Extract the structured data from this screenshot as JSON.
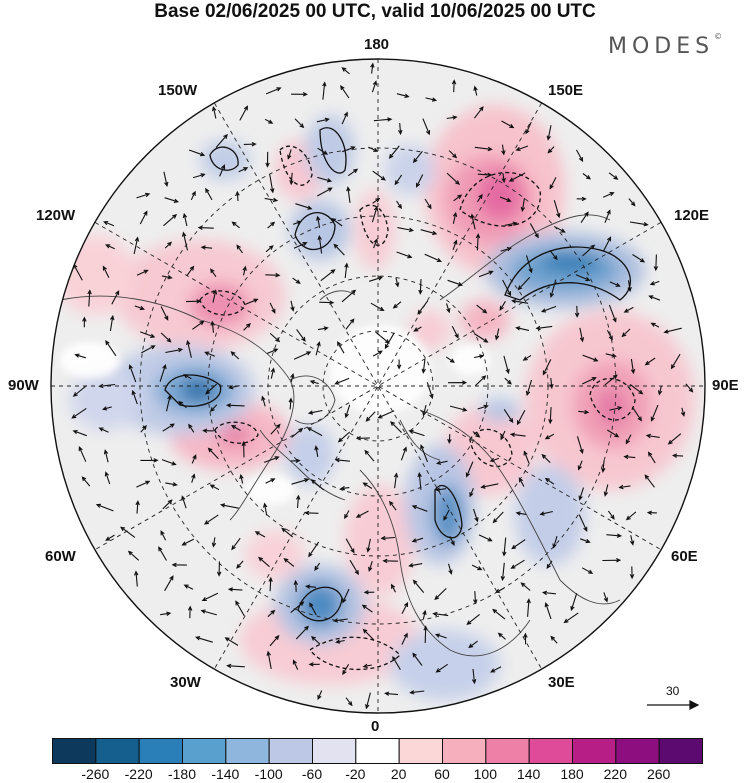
{
  "title": "Base 02/06/2025 00 UTC, valid 10/06/2025 00 UTC",
  "logo": "MODES",
  "logo_mark": "©",
  "longitude_labels": {
    "top": "180",
    "bottom": "0",
    "left": "90W",
    "right": "90E",
    "upper_left_1": "150W",
    "upper_left_2": "120W",
    "lower_left_1": "60W",
    "lower_left_2": "30W",
    "upper_right_1": "150E",
    "upper_right_2": "120E",
    "lower_right_1": "60E",
    "lower_right_2": "30E"
  },
  "reference_vector": "30",
  "colorbar": {
    "colors": [
      "#0d3a5c",
      "#155f8f",
      "#2b7fb8",
      "#5aa0cf",
      "#8fb6dc",
      "#bcc8e6",
      "#e2e2f0",
      "#ffffff",
      "#fbd7d7",
      "#f6b0bd",
      "#ee80a8",
      "#e04b99",
      "#b81f86",
      "#8c0e7f",
      "#5c0a70"
    ],
    "labels": [
      "-260",
      "-220",
      "-180",
      "-140",
      "-100",
      "-60",
      "-20",
      "20",
      "60",
      "100",
      "140",
      "180",
      "220",
      "260"
    ]
  }
}
